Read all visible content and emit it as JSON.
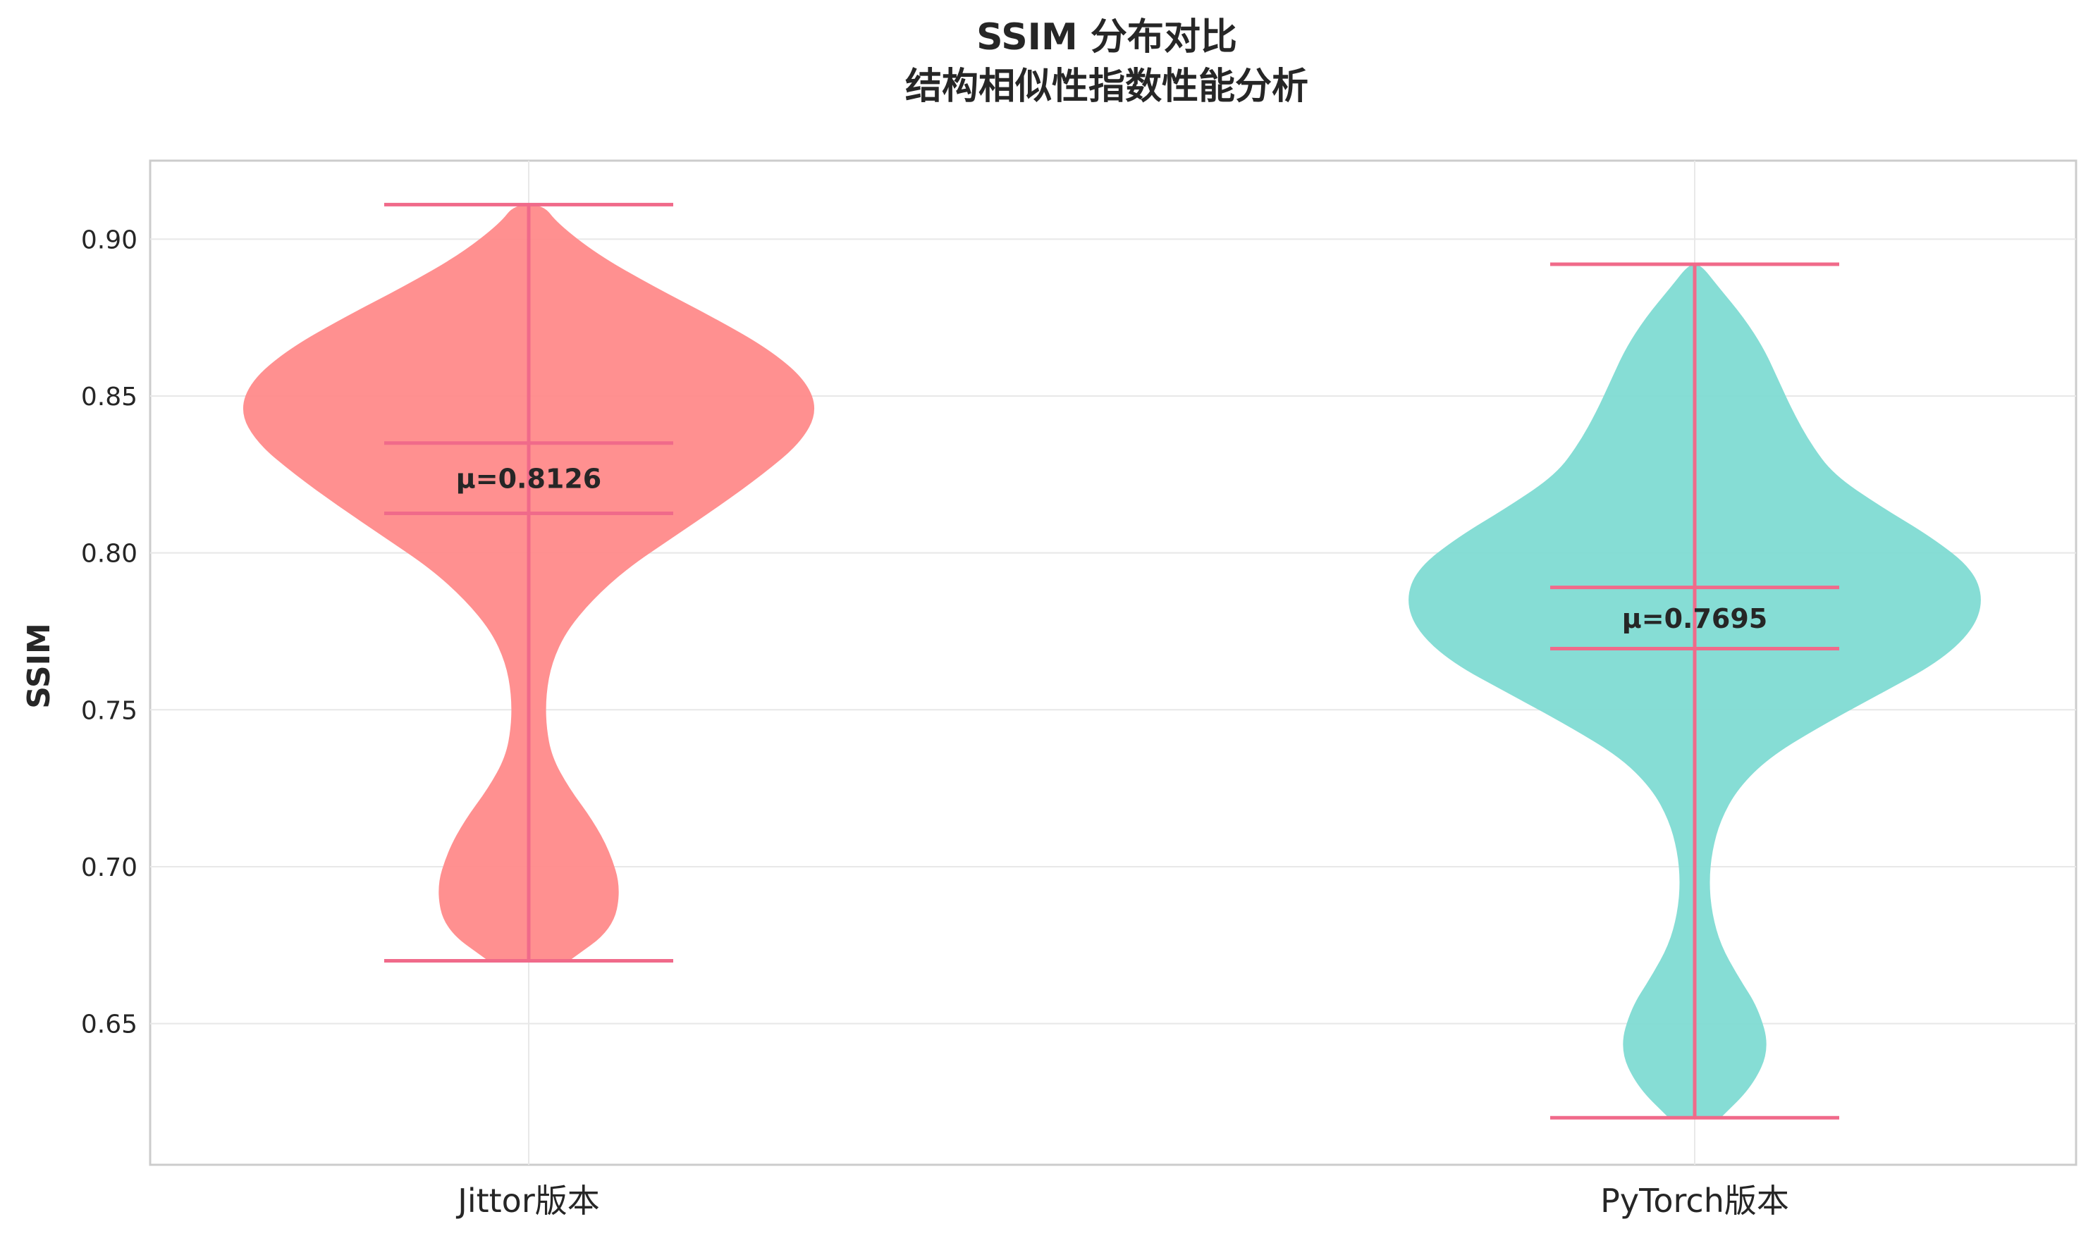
{
  "chart_data": {
    "type": "violin",
    "title": "SSIM 分布对比",
    "subtitle": "结构相似性指数性能分析",
    "ylabel": "SSIM",
    "xlabel": "",
    "ylim": [
      0.605,
      0.925
    ],
    "yticks": [
      "0.65",
      "0.70",
      "0.75",
      "0.80",
      "0.85",
      "0.90"
    ],
    "grid": true,
    "series": [
      {
        "name": "Jittor版本",
        "color": "#ff8a8a",
        "min": 0.67,
        "max": 0.911,
        "mean": 0.8126,
        "median": 0.835,
        "mean_label": "μ=0.8126",
        "density": [
          [
            0.67,
            0.14
          ],
          [
            0.68,
            0.29
          ],
          [
            0.693,
            0.32
          ],
          [
            0.705,
            0.28
          ],
          [
            0.715,
            0.22
          ],
          [
            0.725,
            0.14
          ],
          [
            0.735,
            0.08
          ],
          [
            0.745,
            0.06
          ],
          [
            0.755,
            0.06
          ],
          [
            0.765,
            0.08
          ],
          [
            0.775,
            0.13
          ],
          [
            0.785,
            0.22
          ],
          [
            0.795,
            0.34
          ],
          [
            0.805,
            0.5
          ],
          [
            0.815,
            0.66
          ],
          [
            0.825,
            0.81
          ],
          [
            0.835,
            0.94
          ],
          [
            0.845,
            1.0
          ],
          [
            0.855,
            0.96
          ],
          [
            0.865,
            0.83
          ],
          [
            0.875,
            0.64
          ],
          [
            0.885,
            0.43
          ],
          [
            0.895,
            0.24
          ],
          [
            0.905,
            0.1
          ],
          [
            0.911,
            0.05
          ]
        ]
      },
      {
        "name": "PyTorch版本",
        "color": "#7fdbd3",
        "min": 0.62,
        "max": 0.892,
        "mean": 0.7695,
        "median": 0.789,
        "mean_label": "μ=0.7695",
        "density": [
          [
            0.62,
            0.09
          ],
          [
            0.63,
            0.2
          ],
          [
            0.642,
            0.26
          ],
          [
            0.655,
            0.22
          ],
          [
            0.665,
            0.15
          ],
          [
            0.675,
            0.09
          ],
          [
            0.685,
            0.06
          ],
          [
            0.695,
            0.05
          ],
          [
            0.705,
            0.06
          ],
          [
            0.715,
            0.09
          ],
          [
            0.725,
            0.15
          ],
          [
            0.735,
            0.26
          ],
          [
            0.745,
            0.44
          ],
          [
            0.755,
            0.64
          ],
          [
            0.765,
            0.84
          ],
          [
            0.775,
            0.96
          ],
          [
            0.785,
            1.0
          ],
          [
            0.795,
            0.96
          ],
          [
            0.805,
            0.82
          ],
          [
            0.815,
            0.64
          ],
          [
            0.825,
            0.48
          ],
          [
            0.835,
            0.4
          ],
          [
            0.845,
            0.34
          ],
          [
            0.855,
            0.29
          ],
          [
            0.865,
            0.24
          ],
          [
            0.875,
            0.17
          ],
          [
            0.885,
            0.08
          ],
          [
            0.892,
            0.02
          ]
        ]
      }
    ],
    "line_color": "#f06a8a",
    "line_labels": [
      "min",
      "max",
      "mean",
      "median"
    ]
  }
}
